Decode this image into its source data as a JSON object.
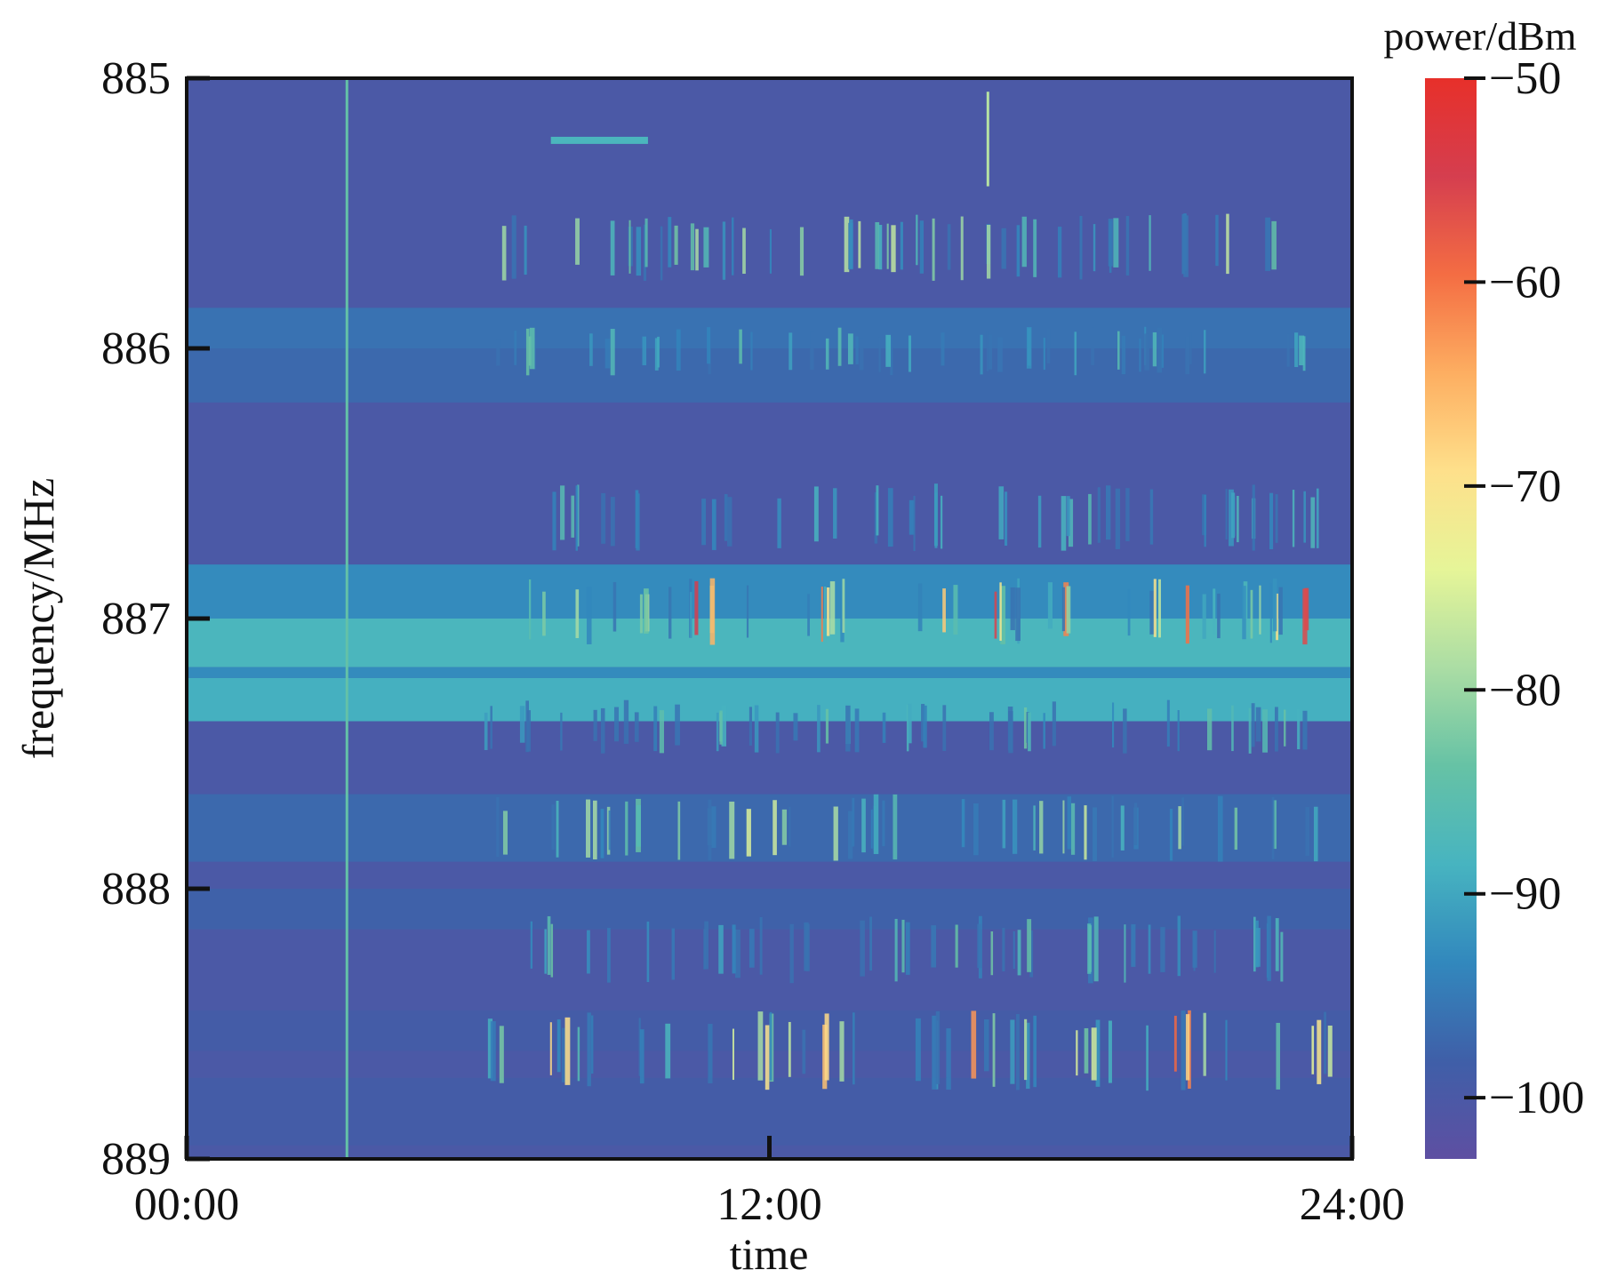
{
  "chart_data": {
    "type": "heatmap",
    "title": "",
    "xlabel": "time",
    "ylabel": "frequency/MHz",
    "colorbar_label": "power/dBm",
    "x_ticks": [
      "00:00",
      "12:00",
      "24:00"
    ],
    "x_tick_hours": [
      0,
      12,
      24
    ],
    "xlim_hours": [
      0,
      24
    ],
    "y_ticks": [
      "885",
      "886",
      "887",
      "888",
      "889"
    ],
    "y_tick_values": [
      885,
      886,
      887,
      888,
      889
    ],
    "ylim_mhz": [
      885,
      889
    ],
    "colorbar_ticks": [
      "−50",
      "−60",
      "−70",
      "−80",
      "−90",
      "−100"
    ],
    "colorbar_values": [
      -50,
      -60,
      -70,
      -80,
      -90,
      -100
    ],
    "colorbar_range_dbm": [
      -103,
      -50
    ],
    "colormap": [
      "#5e4fa2",
      "#3f5fa8",
      "#3288bd",
      "#47b4c0",
      "#66c2a5",
      "#abdda4",
      "#e6f598",
      "#fee08b",
      "#fdae61",
      "#f46d43",
      "#d53e4f",
      "#e7302a"
    ],
    "background_dbm": -100,
    "grid": false,
    "bands": [
      {
        "from_mhz": 885.0,
        "to_mhz": 885.9,
        "dbm": -100
      },
      {
        "from_mhz": 885.85,
        "to_mhz": 886.0,
        "dbm": -96
      },
      {
        "from_mhz": 886.0,
        "to_mhz": 886.2,
        "dbm": -97
      },
      {
        "from_mhz": 886.8,
        "to_mhz": 887.0,
        "dbm": -93
      },
      {
        "from_mhz": 887.0,
        "to_mhz": 887.18,
        "dbm": -88
      },
      {
        "from_mhz": 887.18,
        "to_mhz": 887.22,
        "dbm": -93
      },
      {
        "from_mhz": 887.22,
        "to_mhz": 887.38,
        "dbm": -89
      },
      {
        "from_mhz": 887.65,
        "to_mhz": 887.9,
        "dbm": -97
      },
      {
        "from_mhz": 888.0,
        "to_mhz": 888.15,
        "dbm": -98
      },
      {
        "from_mhz": 888.45,
        "to_mhz": 888.6,
        "dbm": -99
      },
      {
        "from_mhz": 888.7,
        "to_mhz": 888.95,
        "dbm": -99
      }
    ],
    "constant_signal": {
      "time_hours": 3.3,
      "from_mhz": 885.0,
      "to_mhz": 889.0,
      "dbm": -84
    },
    "burst_regions": [
      {
        "from_mhz": 885.5,
        "to_mhz": 885.75,
        "from_hours": 5.0,
        "to_hours": 22.5,
        "peak_dbm": -76
      },
      {
        "from_mhz": 885.92,
        "to_mhz": 886.1,
        "from_hours": 6.3,
        "to_hours": 23.3,
        "peak_dbm": -82
      },
      {
        "from_mhz": 886.5,
        "to_mhz": 886.75,
        "from_hours": 7.5,
        "to_hours": 23.3,
        "peak_dbm": -85
      },
      {
        "from_mhz": 886.85,
        "to_mhz": 887.1,
        "from_hours": 7.0,
        "to_hours": 23.5,
        "peak_dbm": -52
      },
      {
        "from_mhz": 887.3,
        "to_mhz": 887.5,
        "from_hours": 6.0,
        "to_hours": 23.3,
        "peak_dbm": -82
      },
      {
        "from_mhz": 887.65,
        "to_mhz": 887.9,
        "from_hours": 6.3,
        "to_hours": 23.3,
        "peak_dbm": -74
      },
      {
        "from_mhz": 888.1,
        "to_mhz": 888.35,
        "from_hours": 6.8,
        "to_hours": 23.0,
        "peak_dbm": -82
      },
      {
        "from_mhz": 888.45,
        "to_mhz": 888.75,
        "from_hours": 6.2,
        "to_hours": 23.6,
        "peak_dbm": -58
      }
    ],
    "notable_signals": [
      {
        "time_hours": 7.5,
        "to_hours": 9.5,
        "freq_mhz": 885.23,
        "dbm": -88
      },
      {
        "time_hours": 16.5,
        "freq_mhz": 885.25,
        "dbm": -78
      }
    ]
  }
}
